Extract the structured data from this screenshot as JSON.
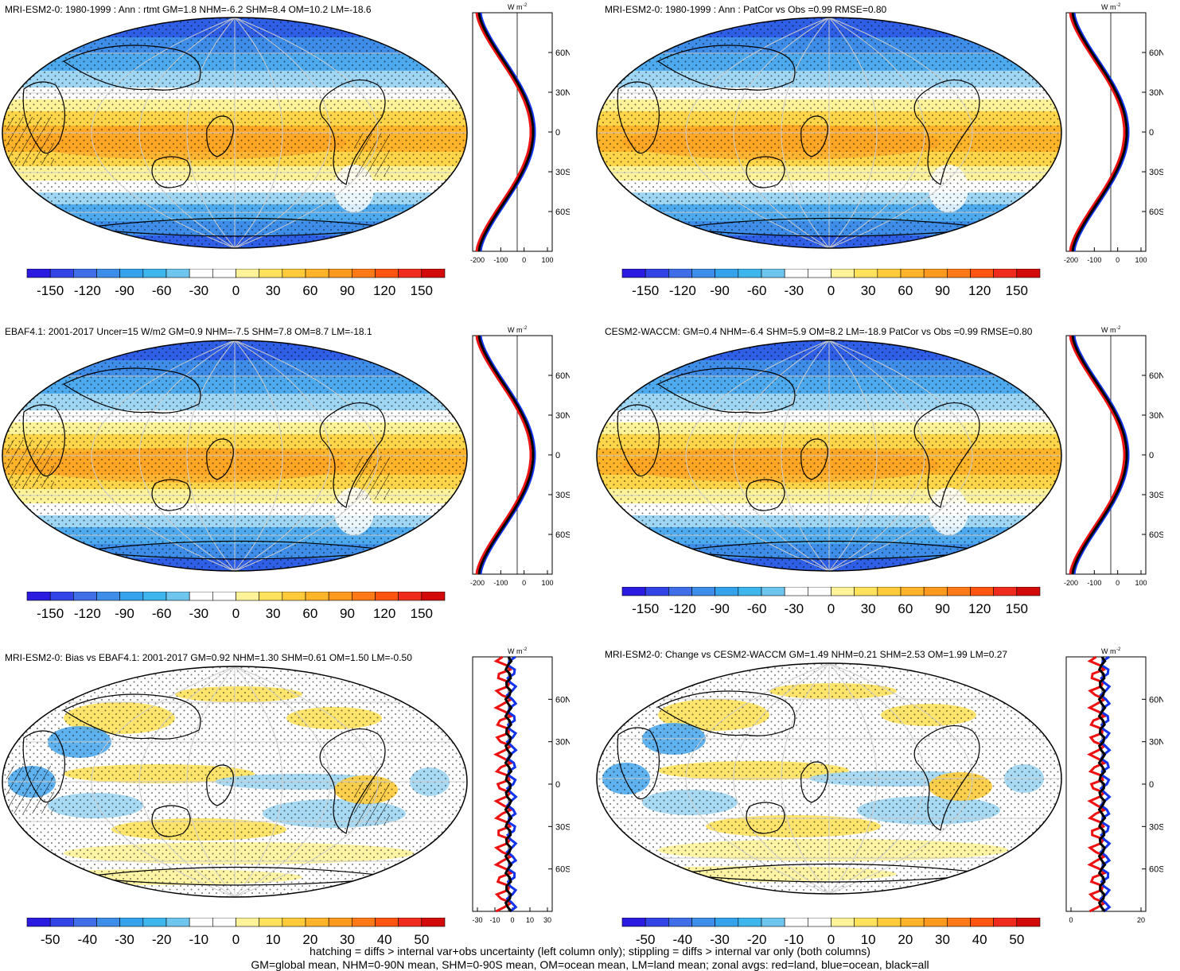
{
  "palette_wide": [
    "#2b1ae0",
    "#3344e6",
    "#3f6ee8",
    "#3e8ee9",
    "#35a3ec",
    "#3fb5ee",
    "#6ec6ef",
    "#ffffff",
    "#ffffff",
    "#fff39a",
    "#ffe25c",
    "#ffcb3a",
    "#ffb42a",
    "#ff9a1f",
    "#ff7a16",
    "#ff5511",
    "#ee2b1c",
    "#d30a0a"
  ],
  "panels": [
    {
      "id": "p1",
      "title": "MRI-ESM2-0: 1980-1999 : Ann : rtmt GM=1.8 NHM=-6.2 SHM=8.4 OM=10.2 LM=-18.6",
      "kind": "climate",
      "cbar_labels": [
        "-150",
        "-120",
        "-90",
        "-60",
        "-30",
        "0",
        "30",
        "60",
        "90",
        "120",
        "150"
      ],
      "zonal_xlabels": [
        "-200",
        "-100",
        "0",
        "100"
      ],
      "zonal_ylabels": [
        "60N",
        "30N",
        "0",
        "30S",
        "60S"
      ],
      "zonal_unit": "W m",
      "zonal_unit_sup": "-2"
    },
    {
      "id": "p2",
      "title": "MRI-ESM2-0: 1980-1999 : Ann : PatCor vs Obs =0.99 RMSE=0.80",
      "kind": "climate",
      "cbar_labels": [
        "-150",
        "-120",
        "-90",
        "-60",
        "-30",
        "0",
        "30",
        "60",
        "90",
        "120",
        "150"
      ],
      "zonal_xlabels": [
        "-200",
        "-100",
        "0",
        "100"
      ],
      "zonal_ylabels": [
        "60N",
        "30N",
        "0",
        "30S",
        "60S"
      ],
      "zonal_unit": "W m",
      "zonal_unit_sup": "-2"
    },
    {
      "id": "p3",
      "title": "EBAF4.1: 2001-2017 Uncer=15 W/m2 GM=0.9 NHM=-7.5 SHM=7.8 OM=8.7 LM=-18.1",
      "kind": "climate",
      "cbar_labels": [
        "-150",
        "-120",
        "-90",
        "-60",
        "-30",
        "0",
        "30",
        "60",
        "90",
        "120",
        "150"
      ],
      "zonal_xlabels": [
        "-200",
        "-100",
        "0",
        "100"
      ],
      "zonal_ylabels": [
        "60N",
        "30N",
        "0",
        "30S",
        "60S"
      ],
      "zonal_unit": "W m",
      "zonal_unit_sup": "-2"
    },
    {
      "id": "p4",
      "title": "CESM2-WACCM: GM=0.4 NHM=-6.4 SHM=5.9 OM=8.2 LM=-18.9 PatCor vs Obs =0.99 RMSE=0.80",
      "kind": "climate",
      "cbar_labels": [
        "-150",
        "-120",
        "-90",
        "-60",
        "-30",
        "0",
        "30",
        "60",
        "90",
        "120",
        "150"
      ],
      "zonal_xlabels": [
        "-200",
        "-100",
        "0",
        "100"
      ],
      "zonal_ylabels": [
        "60N",
        "30N",
        "0",
        "30S",
        "60S"
      ],
      "zonal_unit": "W m",
      "zonal_unit_sup": "-2"
    },
    {
      "id": "p5",
      "title": "MRI-ESM2-0: Bias vs EBAF4.1: 2001-2017 GM=0.92 NHM=1.30 SHM=0.61 OM=1.50 LM=-0.50",
      "kind": "diff",
      "cbar_labels": [
        "-50",
        "-40",
        "-30",
        "-20",
        "-10",
        "0",
        "10",
        "20",
        "30",
        "40",
        "50"
      ],
      "zonal_xlabels": [
        "-30",
        "-10",
        "0",
        "10",
        "30"
      ],
      "zonal_ylabels": [
        "60N",
        "30N",
        "0",
        "30S",
        "60S"
      ],
      "zonal_unit": "W m",
      "zonal_unit_sup": "-2"
    },
    {
      "id": "p6",
      "title": "MRI-ESM2-0: Change vs CESM2-WACCM GM=1.49 NHM=0.21 SHM=2.53 OM=1.99 LM=0.27",
      "kind": "diff",
      "cbar_labels": [
        "-50",
        "-40",
        "-30",
        "-20",
        "-10",
        "0",
        "10",
        "20",
        "30",
        "40",
        "50"
      ],
      "zonal_xlabels": [
        "0",
        "20"
      ],
      "zonal_ylabels": [
        "60N",
        "30N",
        "0",
        "30S",
        "60S"
      ],
      "zonal_unit": "W m",
      "zonal_unit_sup": "-2"
    }
  ],
  "footer": {
    "line1": "hatching = diffs > internal var+obs uncertainty (left column only); stippling = diffs > internal var only (both columns)",
    "line2": "GM=global mean, NHM=0-90N mean, SHM=0-90S mean, OM=ocean mean, LM=land mean; zonal avgs: red=land, blue=ocean, black=all"
  }
}
